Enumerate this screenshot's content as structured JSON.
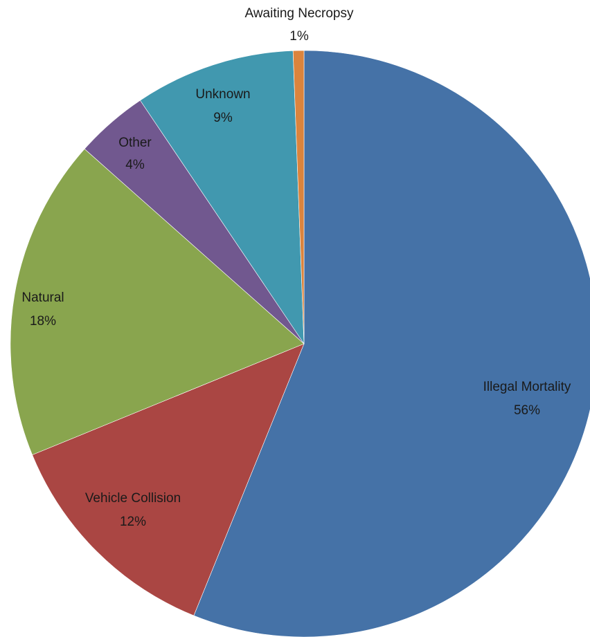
{
  "chart_data": {
    "type": "pie",
    "start_angle_deg": 0,
    "direction": "clockwise",
    "legend": "none",
    "slices": [
      {
        "name": "Illegal Mortality",
        "value": 56,
        "label": "56%",
        "color": "#4572A7"
      },
      {
        "name": "Vehicle Collision",
        "value": 12,
        "label": "12%",
        "color": "#AA4643"
      },
      {
        "name": "Natural",
        "value": 18,
        "label": "18%",
        "color": "#89A54E"
      },
      {
        "name": "Other",
        "value": 4,
        "label": "4%",
        "color": "#71588F"
      },
      {
        "name": "Unknown",
        "value": 9,
        "label": "9%",
        "color": "#4198AF"
      },
      {
        "name": "Awaiting Necropsy",
        "value": 1,
        "label": "1%",
        "color": "#DB843D"
      }
    ]
  }
}
